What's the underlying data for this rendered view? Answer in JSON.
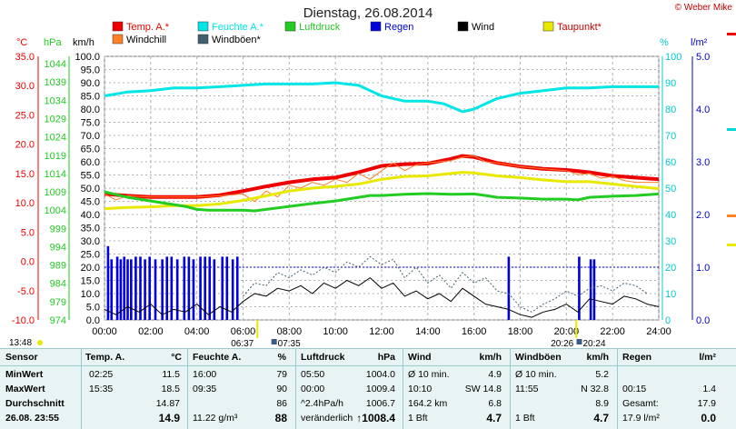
{
  "title": "Dienstag, 26.08.2014",
  "copyright": "© Weber Mike",
  "legend": [
    {
      "label": "Temp. A.*",
      "color": "#ee0000",
      "row": 0,
      "col": 0
    },
    {
      "label": "Feuchte A.*",
      "color": "#00e5e5",
      "row": 0,
      "col": 1
    },
    {
      "label": "Luftdruck",
      "color": "#22cc22",
      "row": 0,
      "col": 2
    },
    {
      "label": "Regen",
      "color": "#0000dd",
      "row": 0,
      "col": 3
    },
    {
      "label": "Wind",
      "color": "#000000",
      "row": 0,
      "col": 4
    },
    {
      "label": "Taupunkt*",
      "color": "#e8e800",
      "row": 0,
      "col": 5
    },
    {
      "label": "Windchill",
      "color": "#ff7f27",
      "row": 1,
      "col": 0
    },
    {
      "label": "Windböen*",
      "color": "#406070",
      "row": 1,
      "col": 1
    }
  ],
  "axis_units": {
    "temp": "°C",
    "pressure": "hPa",
    "wind": "km/h",
    "humidity": "%",
    "rain": "l/m²"
  },
  "chart_data": {
    "type": "line",
    "x_ticks": [
      "00:00",
      "02:00",
      "04:00",
      "06:00",
      "08:00",
      "10:00",
      "12:00",
      "14:00",
      "16:00",
      "18:00",
      "20:00",
      "22:00",
      "24:00"
    ],
    "temp_ticks": [
      "35.0",
      "30.0",
      "25.0",
      "20.0",
      "15.0",
      "10.0",
      "5.0",
      "0.0",
      "-5.0",
      "-10.0"
    ],
    "pressure_ticks": [
      "1044",
      "1039",
      "1034",
      "1029",
      "1024",
      "1019",
      "1014",
      "1009",
      "1004",
      "999",
      "994",
      "989",
      "984",
      "979",
      "974"
    ],
    "wind_ticks": [
      "100.0",
      "95.0",
      "90.0",
      "85.0",
      "80.0",
      "75.0",
      "70.0",
      "65.0",
      "60.0",
      "55.0",
      "50.0",
      "45.0",
      "40.0",
      "35.0",
      "30.0",
      "25.0",
      "20.0",
      "15.0",
      "10.0",
      "5.0",
      "0.0"
    ],
    "humidity_ticks": [
      "100",
      "90",
      "80",
      "70",
      "60",
      "50",
      "40",
      "30",
      "20",
      "10",
      "0"
    ],
    "rain_ticks": [
      "5.0",
      "4.0",
      "3.0",
      "2.0",
      "1.0",
      "0.0"
    ],
    "ranges": {
      "temp": [
        -10,
        35
      ],
      "pressure": [
        974,
        1046
      ],
      "wind": [
        0,
        100
      ],
      "humidity": [
        0,
        100
      ],
      "rain": [
        0,
        5
      ]
    },
    "x_range_h": [
      0,
      24
    ],
    "series": [
      {
        "name": "Feuchte A.*",
        "axis": "humidity",
        "color": "#00e5e5",
        "width": 3,
        "x": [
          0,
          1,
          2,
          3,
          4,
          5,
          6,
          7,
          8,
          9,
          10,
          11,
          12,
          13,
          14,
          14.7,
          15.5,
          16,
          17,
          18,
          19,
          20,
          21,
          22,
          23,
          24
        ],
        "y": [
          85,
          86.5,
          87,
          88,
          88,
          88.5,
          89,
          89.5,
          89.5,
          89.5,
          90,
          89,
          85,
          83,
          83,
          82,
          79,
          80,
          84,
          86,
          87,
          88,
          88,
          88.5,
          88.5,
          88.5
        ]
      },
      {
        "name": "Temp. A.*",
        "axis": "temp",
        "color": "#ee0000",
        "width": 4,
        "x": [
          0,
          1,
          2,
          3,
          4,
          5,
          6,
          7,
          8,
          9,
          10,
          11,
          12,
          13,
          14,
          15,
          15.5,
          16,
          17,
          18,
          19,
          20,
          21,
          22,
          23,
          24
        ],
        "y": [
          11.5,
          11.2,
          11.0,
          11.0,
          11.0,
          11.3,
          12.0,
          12.8,
          13.5,
          14.0,
          14.3,
          15.2,
          16.3,
          16.6,
          16.7,
          17.5,
          18.0,
          17.8,
          16.8,
          16.2,
          15.8,
          15.6,
          15.2,
          14.6,
          14.3,
          14.0
        ]
      },
      {
        "name": "Windchill",
        "axis": "temp",
        "color": "#ff7f27",
        "width": 1,
        "x": [
          0,
          0.5,
          1,
          2,
          3,
          4,
          5,
          6,
          6.5,
          7,
          7.5,
          8,
          8.5,
          9,
          9.5,
          10,
          10.5,
          11,
          11.5,
          12,
          12.5,
          13,
          13.5,
          14,
          14.5,
          15,
          15.5,
          16,
          16.5,
          17,
          18,
          19,
          20,
          20.5,
          21,
          21.5,
          22,
          22.5,
          23,
          24
        ],
        "y": [
          11.5,
          10.5,
          11.2,
          11.0,
          11.0,
          11.0,
          11.2,
          11.5,
          10.2,
          12.0,
          11.0,
          13.0,
          12.5,
          13.5,
          13.0,
          14.0,
          13.5,
          15.0,
          14.0,
          15.5,
          16.8,
          15.5,
          16.5,
          16.8,
          17.0,
          17.2,
          17.8,
          18.0,
          17.0,
          16.8,
          16.2,
          15.8,
          15.5,
          14.8,
          15.0,
          14.2,
          14.5,
          13.8,
          13.5,
          13.5
        ]
      },
      {
        "name": "Taupunkt*",
        "axis": "temp",
        "color": "#e8e800",
        "width": 3,
        "x": [
          0,
          1,
          2,
          3,
          4,
          5,
          6,
          7,
          8,
          9,
          10,
          11,
          12,
          13,
          14,
          15,
          15.5,
          16,
          17,
          18,
          19,
          20,
          21,
          22,
          23,
          24
        ],
        "y": [
          9.0,
          9.2,
          9.3,
          9.5,
          9.5,
          9.8,
          10.4,
          11.2,
          12.0,
          12.5,
          12.8,
          13.2,
          14.0,
          14.5,
          14.6,
          15.0,
          15.2,
          15.1,
          14.6,
          14.3,
          13.9,
          13.6,
          13.6,
          13.2,
          12.8,
          12.4
        ]
      },
      {
        "name": "Luftdruck",
        "axis": "pressure",
        "color": "#22cc22",
        "width": 3,
        "x": [
          0,
          1,
          2,
          3,
          3.5,
          4,
          4.5,
          5,
          6,
          6.5,
          7,
          8,
          9,
          10,
          10.5,
          11,
          11.5,
          12,
          13,
          14,
          15,
          16,
          16.5,
          17,
          18,
          19,
          20,
          20.5,
          21,
          22,
          23,
          24
        ],
        "y": [
          1009.0,
          1007.5,
          1006.5,
          1005.5,
          1005.0,
          1004.2,
          1004.0,
          1004.0,
          1004.0,
          1003.8,
          1004.2,
          1005.0,
          1005.8,
          1006.5,
          1007.0,
          1007.5,
          1008.0,
          1008.0,
          1008.3,
          1008.5,
          1008.3,
          1008.4,
          1008.0,
          1007.5,
          1007.3,
          1007.0,
          1007.0,
          1006.8,
          1007.5,
          1007.8,
          1008.0,
          1008.4
        ]
      },
      {
        "name": "Windböen*",
        "axis": "wind",
        "color": "#406070",
        "width": 1,
        "dash": true,
        "x": [
          6,
          6.5,
          7,
          7.5,
          8,
          8.5,
          9,
          9.5,
          10,
          10.5,
          11,
          11.5,
          12,
          12.5,
          13,
          13.5,
          14,
          14.5,
          15,
          15.5,
          16,
          16.5,
          17,
          17.5,
          18,
          18.5,
          19,
          19.5,
          20,
          20.5,
          21,
          21.5,
          22,
          22.5,
          23,
          23.5
        ],
        "y": [
          9,
          14,
          13,
          18,
          16,
          19,
          17,
          20,
          18,
          22,
          20,
          24,
          21,
          23,
          16,
          20,
          14,
          17,
          12,
          18,
          14,
          16,
          11,
          10,
          5,
          3,
          6,
          8,
          11,
          9,
          12,
          13,
          11,
          14,
          13,
          10
        ]
      },
      {
        "name": "Wind",
        "axis": "wind",
        "color": "#000000",
        "width": 1,
        "x": [
          0,
          0.5,
          1,
          1.5,
          2,
          2.5,
          3,
          3.5,
          4,
          4.5,
          5,
          5.5,
          6,
          6.5,
          7,
          7.5,
          8,
          8.5,
          9,
          9.5,
          10,
          10.5,
          11,
          11.5,
          12,
          12.5,
          13,
          13.5,
          14,
          14.5,
          15,
          15.5,
          16,
          16.5,
          17,
          17.5,
          18,
          18.5,
          19,
          19.5,
          20,
          20.5,
          21,
          21.5,
          22,
          22.5,
          23,
          23.5,
          24
        ],
        "y": [
          4,
          2,
          5,
          3,
          6,
          2,
          4,
          3,
          6,
          2,
          5,
          3,
          7,
          10,
          9,
          12,
          11,
          13,
          10,
          14,
          12,
          15,
          13,
          16,
          12,
          14,
          9,
          11,
          8,
          10,
          7,
          12,
          9,
          6,
          5,
          4,
          2,
          1,
          3,
          4,
          6,
          3,
          8,
          7,
          6,
          9,
          8,
          6,
          5
        ]
      }
    ],
    "rain_dotted_line": {
      "axis": "rain",
      "value": 1.0
    },
    "rain_bars": {
      "axis": "rain",
      "x": [
        0.15,
        0.3,
        0.55,
        0.7,
        0.85,
        1.0,
        1.15,
        1.35,
        1.55,
        1.75,
        1.95,
        2.2,
        2.5,
        2.7,
        2.9,
        3.15,
        3.45,
        3.65,
        3.85,
        4.15,
        4.35,
        4.55,
        4.75,
        5.1,
        5.3,
        5.55,
        5.75,
        17.5,
        20.55,
        21.05,
        21.2
      ],
      "y": [
        1.4,
        1.15,
        1.2,
        1.15,
        1.2,
        1.15,
        1.15,
        1.2,
        1.2,
        1.15,
        1.2,
        1.15,
        1.15,
        1.2,
        1.2,
        1.15,
        1.2,
        1.2,
        1.15,
        1.2,
        1.2,
        1.2,
        1.15,
        1.2,
        1.2,
        1.15,
        1.2,
        1.2,
        1.2,
        1.15,
        1.15
      ]
    },
    "sun_markers": {
      "sunrise": "06:37",
      "sunset": "20:26",
      "moonrise": "07:35",
      "moonset": "20:24",
      "left_time": "13:48"
    }
  },
  "table": {
    "headers": [
      "Sensor",
      "Temp. A.",
      "°C",
      "Feuchte A.",
      "%",
      "Luftdruck",
      "hPa",
      "Wind",
      "km/h",
      "Windböen",
      "km/h",
      "Regen",
      "l/m²"
    ],
    "rows": [
      {
        "label": "MinWert",
        "cells": [
          "02:25",
          "11.5",
          "16:00",
          "79",
          "05:50",
          "1004.0",
          "Ø 10 min.",
          "4.9",
          "Ø 10 min.",
          "5.2",
          "",
          ""
        ]
      },
      {
        "label": "MaxWert",
        "cells": [
          "15:35",
          "18.5",
          "09:35",
          "90",
          "00:00",
          "1009.4",
          "10:10",
          "SW 14.8",
          "11:55",
          "N 32.8",
          "00:15",
          "1.4"
        ]
      },
      {
        "label": "Durchschnitt",
        "cells": [
          "",
          "14.87",
          "",
          "86",
          "^2.4hPa/h",
          "1006.7",
          "164.2 km",
          "6.8",
          "",
          "8.9",
          "Gesamt:",
          "17.9"
        ]
      },
      {
        "label": "26.08. 23:55",
        "cells": [
          "",
          "14.9",
          "11.22 g/m³",
          "88",
          "veränderlich",
          "↑1008.4",
          "1 Bft",
          "4.7",
          "1 Bft",
          "4.7",
          "17.9 l/m²",
          "0.0"
        ]
      }
    ]
  }
}
